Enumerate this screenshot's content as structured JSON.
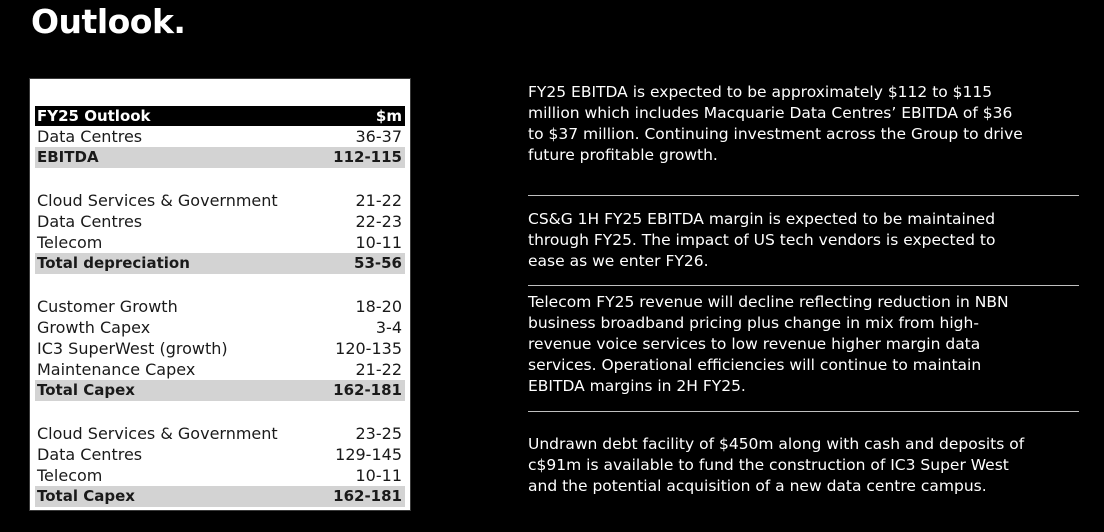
{
  "title": "Outlook.",
  "table": {
    "header": {
      "label": "FY25 Outlook",
      "value": "$m"
    },
    "sections": [
      {
        "rows": [
          {
            "label": "Data Centres",
            "value": "36-37",
            "total": false
          },
          {
            "label": "EBITDA",
            "value": "112-115",
            "total": true
          }
        ]
      },
      {
        "rows": [
          {
            "label": "Cloud Services & Government",
            "value": "21-22",
            "total": false
          },
          {
            "label": "Data Centres",
            "value": "22-23",
            "total": false
          },
          {
            "label": "Telecom",
            "value": "10-11",
            "total": false
          },
          {
            "label": "Total depreciation",
            "value": "53-56",
            "total": true
          }
        ]
      },
      {
        "rows": [
          {
            "label": "Customer Growth",
            "value": "18-20",
            "total": false
          },
          {
            "label": "Growth Capex",
            "value": "3-4",
            "total": false
          },
          {
            "label": "IC3 SuperWest (growth)",
            "value": "120-135",
            "total": false
          },
          {
            "label": "Maintenance Capex",
            "value": "21-22",
            "total": false
          },
          {
            "label": "Total Capex",
            "value": "162-181",
            "total": true
          }
        ]
      },
      {
        "rows": [
          {
            "label": "Cloud Services & Government",
            "value": "23-25",
            "total": false
          },
          {
            "label": "Data Centres",
            "value": "129-145",
            "total": false
          },
          {
            "label": "Telecom",
            "value": "10-11",
            "total": false
          },
          {
            "label": "Total Capex",
            "value": "162-181",
            "total": true
          }
        ]
      }
    ]
  },
  "notes": [
    "FY25 EBITDA is expected to be approximately $112 to $115\nmillion which includes Macquarie Data Centres’ EBITDA of $36\nto $37 million. Continuing investment across the Group to drive\nfuture profitable growth.",
    "CS&G 1H FY25 EBITDA margin is expected to be maintained\nthrough FY25. The impact of US tech vendors is expected to\nease as we enter FY26.",
    "Telecom FY25 revenue will decline reflecting reduction in NBN\nbusiness broadband pricing plus change in mix from high-\nrevenue voice services to low revenue higher margin data\nservices. Operational efficiencies will continue to maintain\nEBITDA margins in 2H FY25.",
    "Undrawn debt facility of $450m along with cash and deposits of\nc$91m is available to fund the construction of IC3 Super West\nand the potential acquisition of a new data centre campus."
  ]
}
